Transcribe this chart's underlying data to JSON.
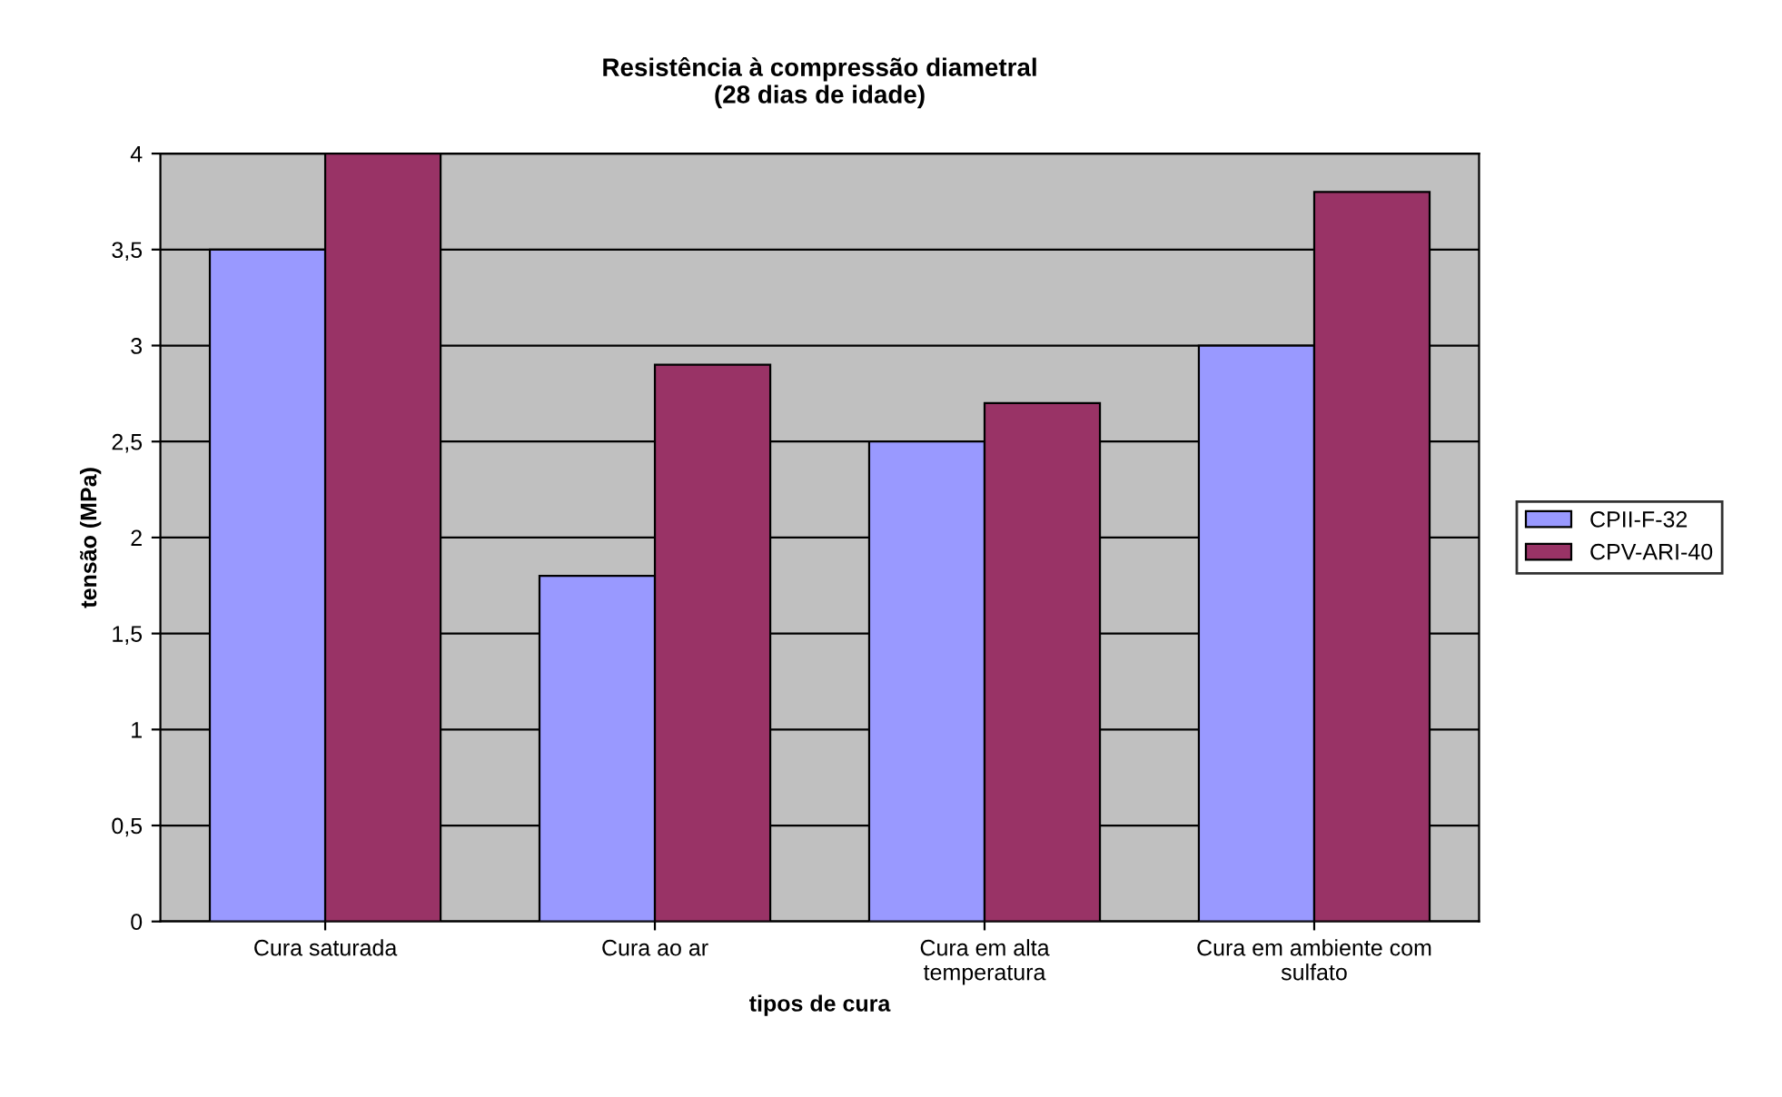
{
  "chart_data": {
    "type": "bar",
    "title": "Resistência à compressão diametral\n(28 dias de idade)",
    "xlabel": "tipos de cura",
    "ylabel": "tensão (MPa)",
    "categories": [
      "Cura saturada",
      "Cura ao ar",
      "Cura em alta\ntemperatura",
      "Cura em ambiente com\nsulfato"
    ],
    "series": [
      {
        "name": "CPII-F-32",
        "color": "#9999ff",
        "values": [
          3.5,
          1.8,
          2.5,
          3.0
        ]
      },
      {
        "name": "CPV-ARI-40",
        "color": "#993366",
        "values": [
          4.0,
          2.9,
          2.7,
          3.8
        ]
      }
    ],
    "ylim": [
      0,
      4
    ],
    "yticks": [
      0,
      {
        "value": 0.5,
        "label": "0,5"
      },
      1,
      {
        "value": 1.5,
        "label": "1,5"
      },
      2,
      {
        "value": 2.5,
        "label": "2,5"
      },
      3,
      {
        "value": 3.5,
        "label": "3,5"
      },
      4
    ],
    "grid": "y",
    "legend": "right"
  }
}
